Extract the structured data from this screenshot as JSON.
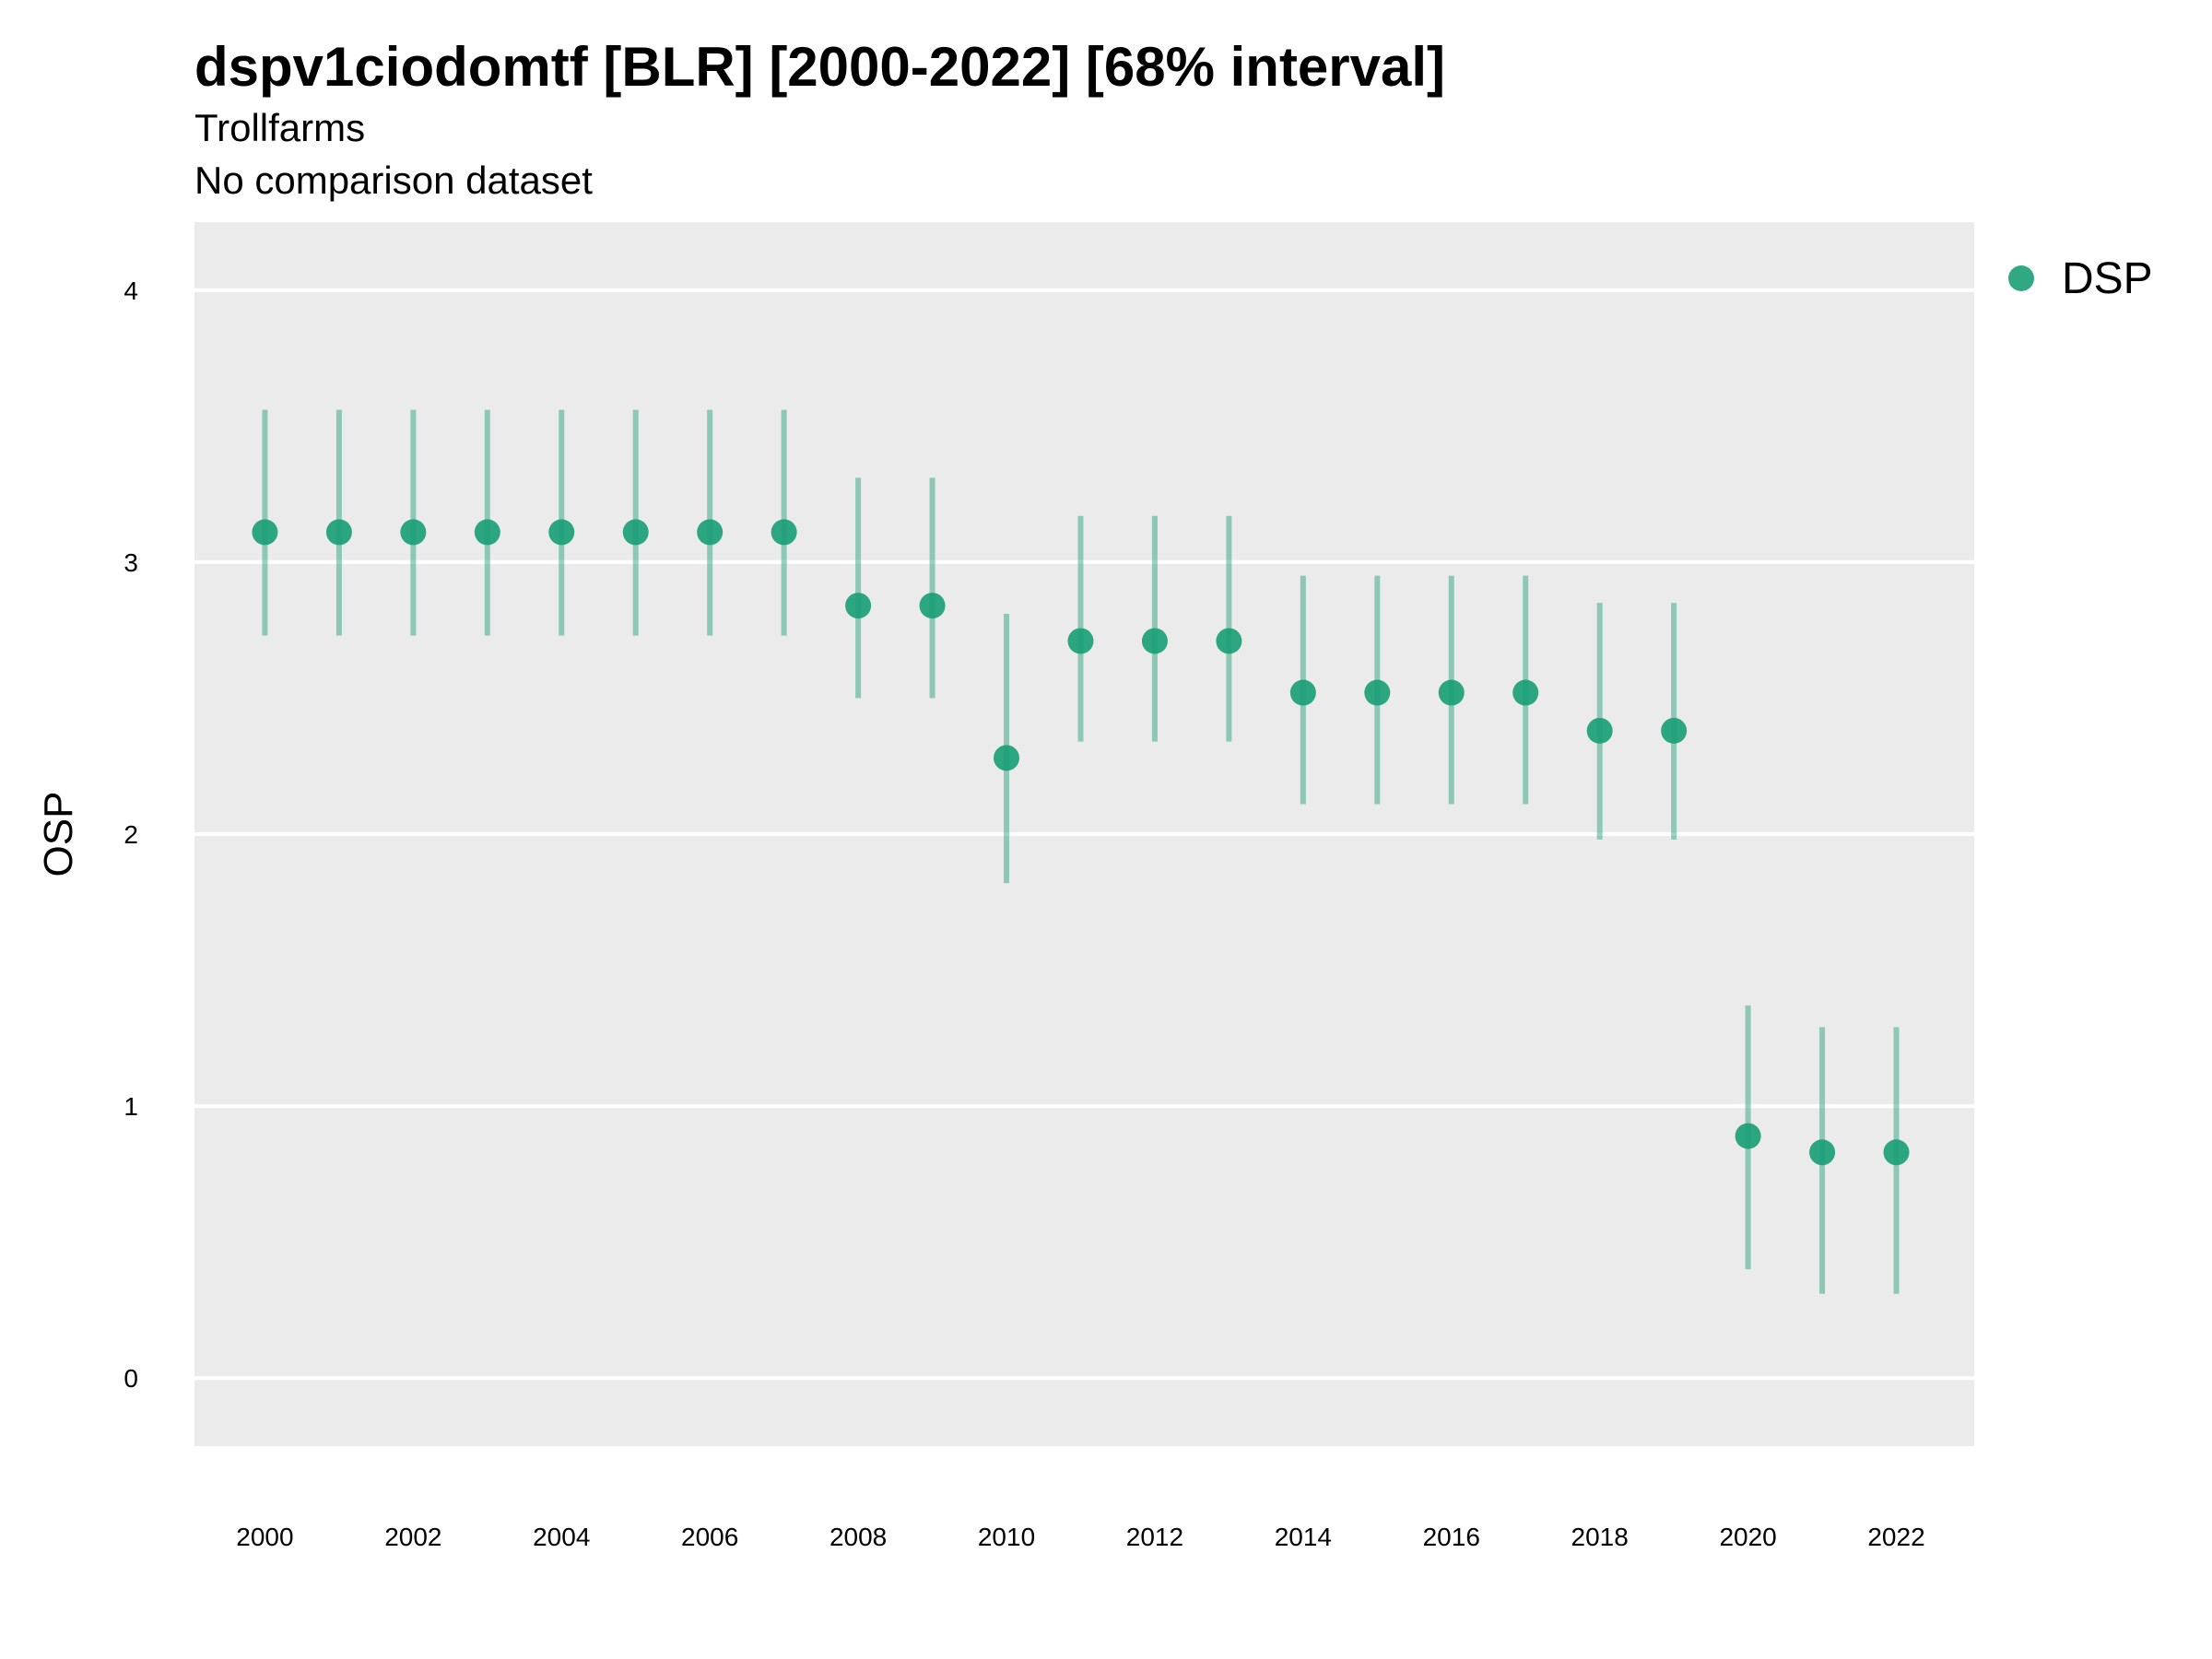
{
  "chart_data": {
    "type": "scatter",
    "title": "dspv1ciodomtf [BLR] [2000-2022] [68% interval]",
    "subtitle": "Trollfarms",
    "subtitle2": "No comparison dataset",
    "xlabel": "",
    "ylabel": "OSP",
    "ylim": [
      -0.25,
      4.25
    ],
    "xlim": [
      1999.05,
      2023.05
    ],
    "y_ticks": [
      "0",
      "1",
      "2",
      "3",
      "4"
    ],
    "x_ticks": [
      "2000",
      "2002",
      "2004",
      "2006",
      "2008",
      "2010",
      "2012",
      "2014",
      "2016",
      "2018",
      "2020",
      "2022"
    ],
    "grid": true,
    "legend_position": "top-right",
    "series": [
      {
        "name": "DSP",
        "color": "#1b9e77",
        "x": [
          2000,
          2001,
          2002,
          2003,
          2004,
          2005,
          2006,
          2007,
          2008,
          2009,
          2010,
          2011,
          2012,
          2013,
          2014,
          2015,
          2016,
          2017,
          2018,
          2019,
          2020,
          2021,
          2022
        ],
        "values": [
          3.11,
          3.11,
          3.11,
          3.11,
          3.11,
          3.11,
          3.11,
          3.11,
          2.84,
          2.84,
          2.28,
          2.71,
          2.71,
          2.71,
          2.52,
          2.52,
          2.52,
          2.52,
          2.38,
          2.38,
          0.89,
          0.83,
          0.83
        ],
        "lower": [
          2.73,
          2.73,
          2.73,
          2.73,
          2.73,
          2.73,
          2.73,
          2.73,
          2.5,
          2.5,
          1.82,
          2.34,
          2.34,
          2.34,
          2.11,
          2.11,
          2.11,
          2.11,
          1.98,
          1.98,
          0.4,
          0.31,
          0.31
        ],
        "upper": [
          3.56,
          3.56,
          3.56,
          3.56,
          3.56,
          3.56,
          3.56,
          3.56,
          3.31,
          3.31,
          2.81,
          3.17,
          3.17,
          3.17,
          2.95,
          2.95,
          2.95,
          2.95,
          2.85,
          2.85,
          1.37,
          1.29,
          1.29
        ]
      }
    ]
  }
}
